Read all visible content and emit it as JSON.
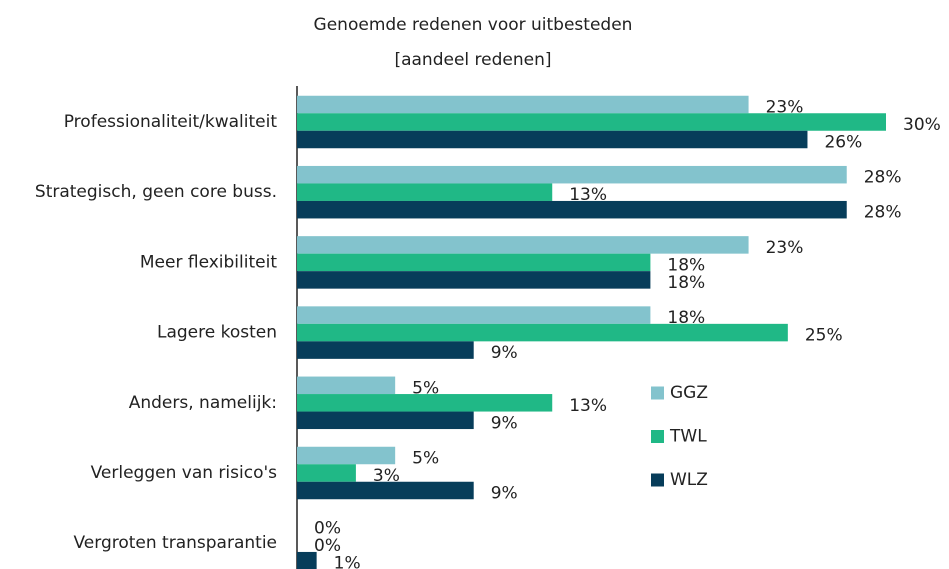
{
  "chart_data": {
    "type": "bar",
    "orientation": "horizontal",
    "title": "Genoemde redenen voor uitbesteden",
    "subtitle": "[aandeel redenen]",
    "categories": [
      "Professionaliteit/kwaliteit",
      "Strategisch, geen core buss.",
      "Meer flexibiliteit",
      "Lagere kosten",
      "Anders, namelijk:",
      "Verleggen van risico's",
      "Vergroten transparantie"
    ],
    "series": [
      {
        "name": "GGZ",
        "color": "#83c3cd",
        "values": [
          23,
          28,
          23,
          18,
          5,
          5,
          0
        ],
        "value_labels": [
          "23%",
          "28%",
          "23%",
          "18%",
          "5%",
          "5%",
          "0%"
        ]
      },
      {
        "name": "TWL",
        "color": "#20b886",
        "values": [
          30,
          13,
          18,
          25,
          13,
          3,
          0
        ],
        "value_labels": [
          "30%",
          "13%",
          "18%",
          "25%",
          "13%",
          "3%",
          "0%"
        ]
      },
      {
        "name": "WLZ",
        "color": "#073d5a",
        "values": [
          26,
          28,
          18,
          9,
          9,
          9,
          1
        ],
        "value_labels": [
          "26%",
          "28%",
          "18%",
          "9%",
          "9%",
          "9%",
          "1%"
        ]
      }
    ],
    "xlim": [
      0,
      30
    ],
    "legend": "right"
  }
}
